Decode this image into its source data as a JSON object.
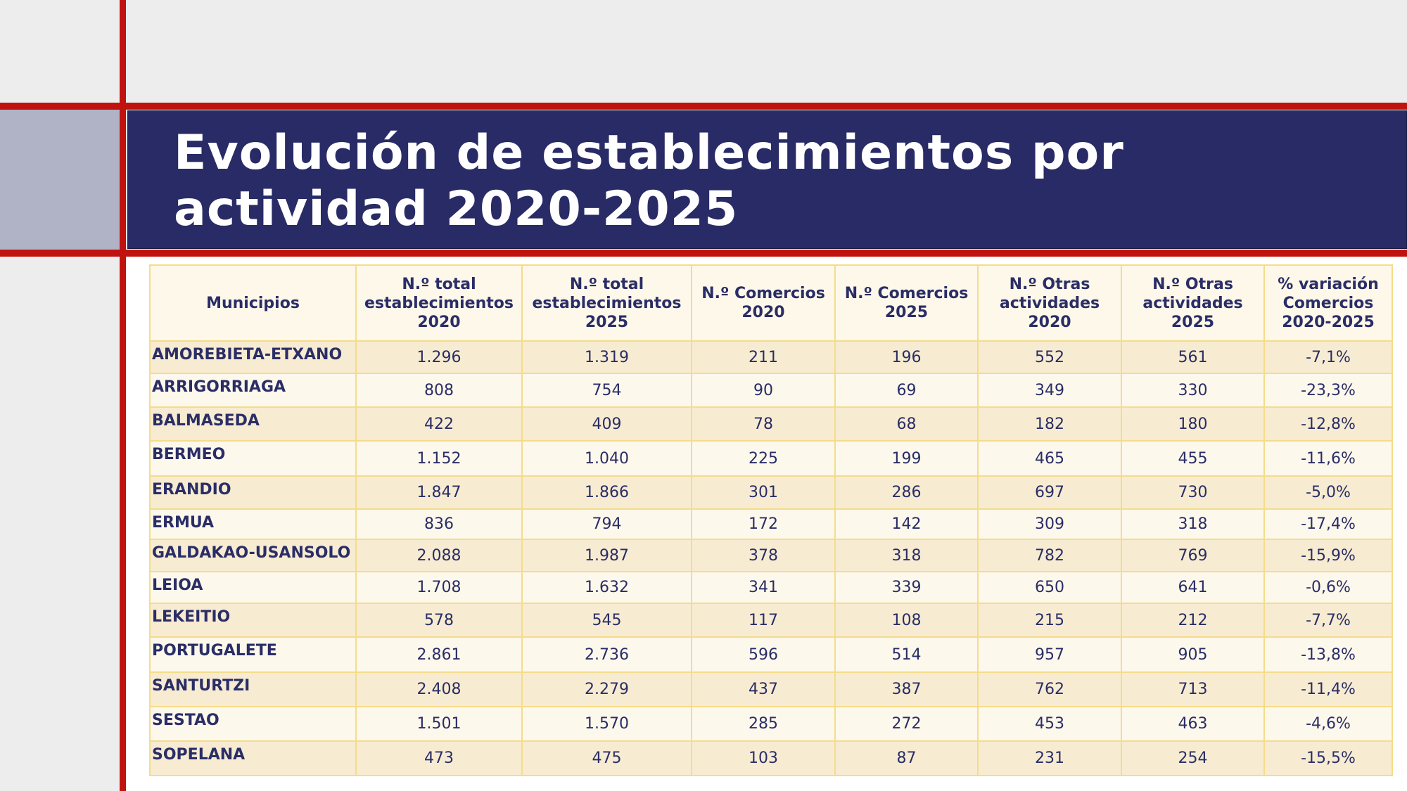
{
  "title": "Evolución de establecimientos por actividad 2020-2025",
  "colors": {
    "accent_red": "#c0130f",
    "title_bg": "#292b66",
    "text": "#2a2d66",
    "row_alt": "#f7ecd2",
    "border": "#f5dc8a"
  },
  "table": {
    "headers": [
      "Municipios",
      "N.º total establecimientos 2020",
      "N.º total establecimientos 2025",
      "N.º Comercios 2020",
      "N.º Comercios 2025",
      "N.º Otras actividades 2020",
      "N.º Otras actividades 2025",
      "% variación Comercios 2020-2025"
    ],
    "rows": [
      [
        "AMOREBIETA-ETXANO",
        "1.296",
        "1.319",
        "211",
        "196",
        "552",
        "561",
        "-7,1%"
      ],
      [
        "ARRIGORRIAGA",
        "808",
        "754",
        "90",
        "69",
        "349",
        "330",
        "-23,3%"
      ],
      [
        "BALMASEDA",
        "422",
        "409",
        "78",
        "68",
        "182",
        "180",
        "-12,8%"
      ],
      [
        "BERMEO",
        "1.152",
        "1.040",
        "225",
        "199",
        "465",
        "455",
        "-11,6%"
      ],
      [
        "ERANDIO",
        "1.847",
        "1.866",
        "301",
        "286",
        "697",
        "730",
        "-5,0%"
      ],
      [
        "ERMUA",
        "836",
        "794",
        "172",
        "142",
        "309",
        "318",
        "-17,4%"
      ],
      [
        "GALDAKAO-USANSOLO",
        "2.088",
        "1.987",
        "378",
        "318",
        "782",
        "769",
        "-15,9%"
      ],
      [
        "LEIOA",
        "1.708",
        "1.632",
        "341",
        "339",
        "650",
        "641",
        "-0,6%"
      ],
      [
        "LEKEITIO",
        "578",
        "545",
        "117",
        "108",
        "215",
        "212",
        "-7,7%"
      ],
      [
        "PORTUGALETE",
        "2.861",
        "2.736",
        "596",
        "514",
        "957",
        "905",
        "-13,8%"
      ],
      [
        "SANTURTZI",
        "2.408",
        "2.279",
        "437",
        "387",
        "762",
        "713",
        "-11,4%"
      ],
      [
        "SESTAO",
        "1.501",
        "1.570",
        "285",
        "272",
        "453",
        "463",
        "-4,6%"
      ],
      [
        "SOPELANA",
        "473",
        "475",
        "103",
        "87",
        "231",
        "254",
        "-15,5%"
      ]
    ]
  }
}
